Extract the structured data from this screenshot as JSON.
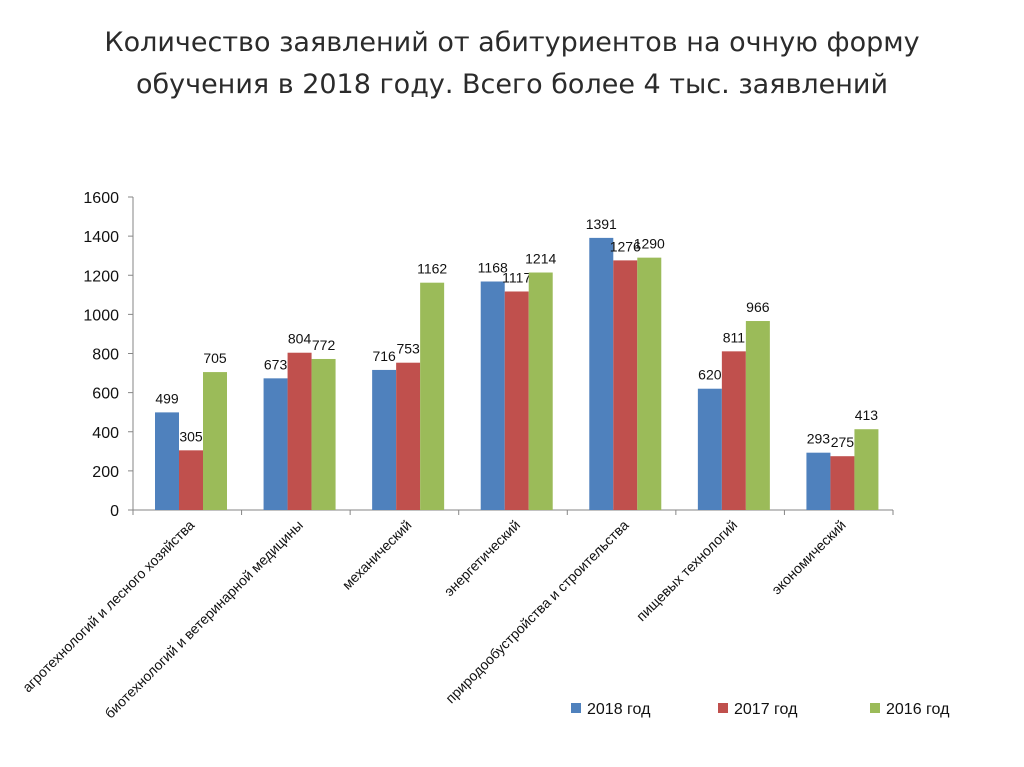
{
  "title": {
    "line1": "Количество заявлений от абитуриентов на очную форму",
    "line2": "обучения в 2018 году. Всего более 4 тыс. заявлений"
  },
  "chart_data": {
    "type": "bar",
    "title": "Количество заявлений от абитуриентов на очную форму обучения в 2018 году. Всего более 4 тыс. заявлений",
    "categories": [
      "агротехнологий и лесного хозяйства",
      "биотехнологий и ветеринарной медицины",
      "механический",
      "энергетический",
      "природообустройства и строительства",
      "пищевых технологий",
      "экономический"
    ],
    "series": [
      {
        "name": "2018 год",
        "color": "#4f81bd",
        "values": [
          499,
          673,
          716,
          1168,
          1391,
          620,
          293
        ]
      },
      {
        "name": "2017 год",
        "color": "#c0504d",
        "values": [
          305,
          804,
          753,
          1117,
          1276,
          811,
          275
        ]
      },
      {
        "name": "2016 год",
        "color": "#9bbb59",
        "values": [
          705,
          772,
          1162,
          1214,
          1290,
          966,
          413
        ]
      }
    ],
    "yticks": [
      0,
      200,
      400,
      600,
      800,
      1000,
      1200,
      1400,
      1600
    ],
    "ylim": [
      0,
      1600
    ],
    "grid": false,
    "legend_position": "bottom-right",
    "xlabel": "",
    "ylabel": ""
  }
}
